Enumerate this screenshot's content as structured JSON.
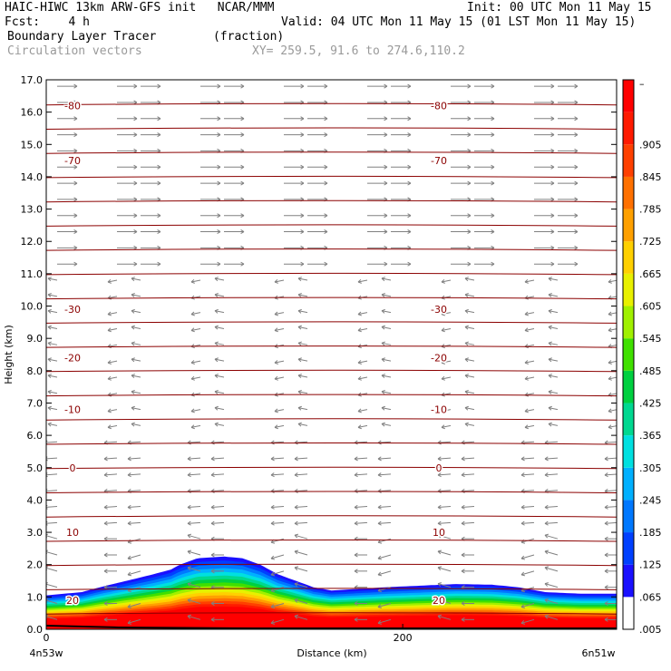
{
  "header": {
    "line1_left": "HAIC-HIWC 13km ARW-GFS init   NCAR/MMM",
    "line1_right": "Init: 00 UTC Mon 11 May 15",
    "line2_left": "Fcst:    4 h",
    "line2_right": "Valid: 04 UTC Mon 11 May 15 (01 LST Mon 11 May 15)",
    "line3_left": "Boundary Layer Tracer        (fraction)",
    "line4_left": "Circulation vectors",
    "line4_right": "XY= 259.5, 91.6 to 274.6,110.2"
  },
  "chart_data": {
    "type": "heatmap",
    "ylabel": "Height (km)",
    "xlabel": "Distance (km)",
    "ylim": [
      0,
      17
    ],
    "yticks": [
      "0.0",
      "1.0",
      "2.0",
      "3.0",
      "4.0",
      "5.0",
      "6.0",
      "7.0",
      "8.0",
      "9.0",
      "10.0",
      "11.0",
      "12.0",
      "13.0",
      "14.0",
      "15.0",
      "16.0",
      "17.0"
    ],
    "xticks": [
      {
        "value": 0,
        "label": "0"
      },
      {
        "value": 200,
        "label": "200"
      }
    ],
    "xlim": [
      0,
      320
    ],
    "x_endpoint_labels": [
      "4n53w",
      "6n51w"
    ],
    "colorbar": {
      "labels": [
        ".005",
        ".065",
        ".125",
        ".185",
        ".245",
        ".305",
        ".365",
        ".425",
        ".485",
        ".545",
        ".605",
        ".665",
        ".725",
        ".785",
        ".845",
        ".905",
        "–"
      ],
      "colors": [
        "#ffffff",
        "#1a10ff",
        "#0040ff",
        "#0078ff",
        "#00b0ff",
        "#00e0e0",
        "#00d890",
        "#00d040",
        "#40e000",
        "#a0f000",
        "#e8f000",
        "#ffd000",
        "#ffa000",
        "#ff7000",
        "#ff4000",
        "#ff1a00",
        "#ff0000"
      ]
    },
    "tracer_top_km": [
      [
        0,
        1.05
      ],
      [
        10,
        1.1
      ],
      [
        20,
        1.15
      ],
      [
        30,
        1.3
      ],
      [
        45,
        1.5
      ],
      [
        60,
        1.7
      ],
      [
        70,
        1.85
      ],
      [
        75,
        2.0
      ],
      [
        85,
        2.2
      ],
      [
        100,
        2.25
      ],
      [
        110,
        2.2
      ],
      [
        120,
        2.0
      ],
      [
        130,
        1.7
      ],
      [
        140,
        1.5
      ],
      [
        150,
        1.3
      ],
      [
        160,
        1.2
      ],
      [
        175,
        1.25
      ],
      [
        190,
        1.3
      ],
      [
        210,
        1.35
      ],
      [
        230,
        1.4
      ],
      [
        250,
        1.38
      ],
      [
        265,
        1.3
      ],
      [
        280,
        1.15
      ],
      [
        300,
        1.1
      ],
      [
        320,
        1.1
      ]
    ],
    "temperature_contours_C": [
      {
        "label": "-80",
        "y_km": 16.2
      },
      {
        "label": "-70",
        "y_km": 14.5
      },
      {
        "label": "-30",
        "y_km": 9.9
      },
      {
        "label": "-20",
        "y_km": 8.4
      },
      {
        "label": "-10",
        "y_km": 6.8
      },
      {
        "label": "0",
        "y_km": 5.0
      },
      {
        "label": "10",
        "y_km": 3.0
      },
      {
        "label": "20",
        "y_km": 0.9
      }
    ]
  }
}
